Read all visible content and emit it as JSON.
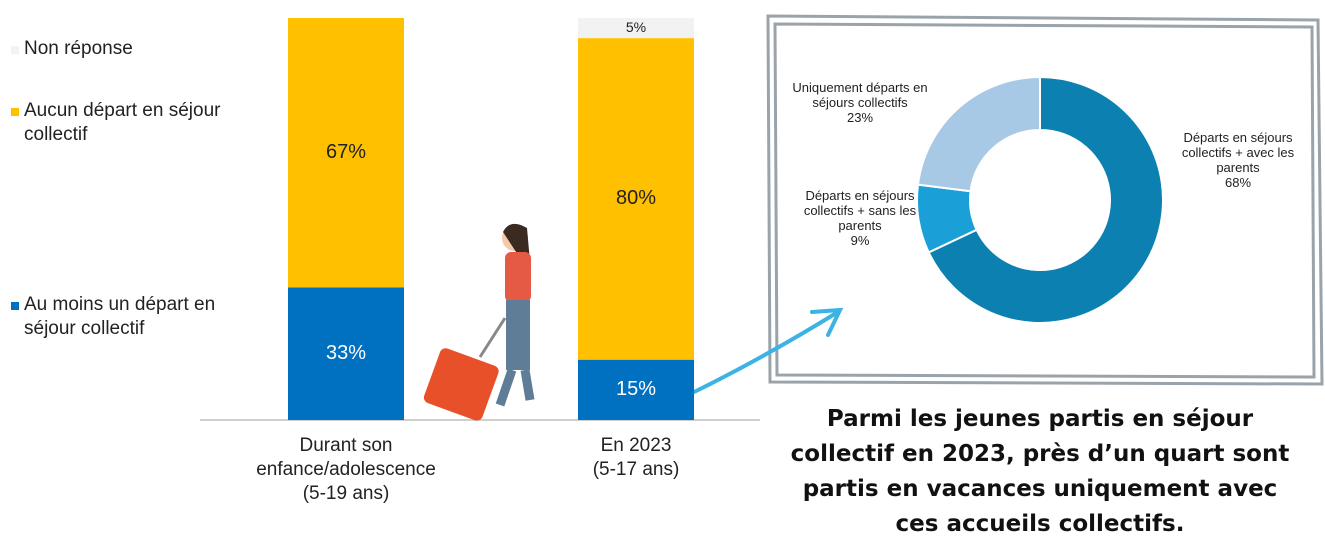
{
  "chart_data": [
    {
      "type": "stacked-bar",
      "categories": [
        "Durant son\nenfance/adolescence\n(5-19 ans)",
        "En 2023\n(5-17 ans)"
      ],
      "series": [
        {
          "name": "Au moins un départ en\nséjour collectif",
          "color": "#0070c0",
          "values": [
            33,
            15
          ],
          "value_labels": [
            "33%",
            "15%"
          ]
        },
        {
          "name": "Aucun départ en séjour\ncollectif",
          "color": "#ffc000",
          "values": [
            67,
            80
          ],
          "value_labels": [
            "67%",
            "80%"
          ]
        },
        {
          "name": "Non réponse",
          "color": "#f2f2f2",
          "values": [
            0,
            5
          ],
          "value_labels": [
            null,
            "5%"
          ]
        }
      ]
    },
    {
      "type": "donut",
      "categories": [
        "Départs en séjours\ncollectifs + avec les\nparents",
        "Départs en séjours\ncollectifs + sans les\nparents",
        "Uniquement  départs en\nséjours collectifs"
      ],
      "values": [
        68,
        9,
        23
      ],
      "value_labels": [
        "68%",
        "9%",
        "23%"
      ],
      "colors": [
        "#0b80b1",
        "#1a9fd6",
        "#a7c9e6"
      ]
    }
  ],
  "caption": "Parmi les jeunes partis en séjour\ncollectif en 2023, près d’un quart sont\npartis en vacances uniquement avec\nces accueils collectifs."
}
